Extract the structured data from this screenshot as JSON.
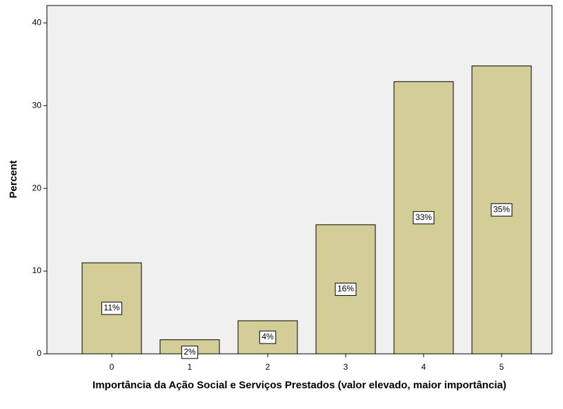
{
  "chart_data": {
    "type": "bar",
    "xlabel": "Importância da Ação Social e Serviços Prestados (valor elevado, maior importância)",
    "ylabel": "Percent",
    "categories": [
      "0",
      "1",
      "2",
      "3",
      "4",
      "5"
    ],
    "values": [
      11.0,
      1.7,
      4.0,
      15.6,
      32.9,
      34.8
    ],
    "value_labels": [
      "11%",
      "2%",
      "4%",
      "16%",
      "33%",
      "35%"
    ],
    "color": "#d3ce98",
    "ylim": [
      0,
      42.1
    ],
    "yticks": [
      0,
      10,
      20,
      30,
      40
    ],
    "grid": false
  }
}
